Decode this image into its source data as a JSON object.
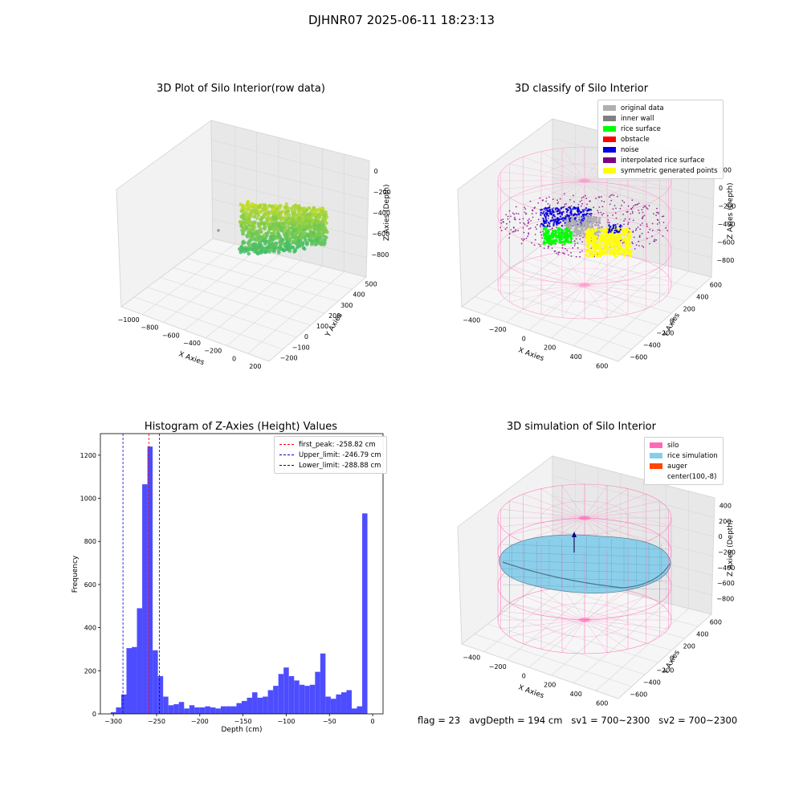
{
  "suptitle": "DJHNR07 2025-06-11 18:23:13",
  "footer": {
    "flag": "flag = 23",
    "avg_depth": "avgDepth = 194 cm",
    "sv1": "sv1 = 700~2300",
    "sv2": "sv2 = 700~2300"
  },
  "plot1": {
    "title": "3D Plot of Silo Interior(row data)",
    "xlabel": "X Axies",
    "ylabel": "Y Axies",
    "zlabel": "Z Axies (Depth)",
    "xticks": [
      "−1000",
      "−800",
      "−600",
      "−400",
      "−200",
      "0",
      "200"
    ],
    "yticks": [
      "−200",
      "−100",
      "0",
      "100",
      "200",
      "300",
      "400",
      "500"
    ],
    "zticks": [
      "−800",
      "−600",
      "−400",
      "−200",
      "0"
    ],
    "colors": {
      "low": "#3fbd6a",
      "high": "#e3e31a"
    }
  },
  "plot2": {
    "title": "3D classify of Silo Interior",
    "xlabel": "X Axies",
    "ylabel": "Y Axies",
    "zlabel": "Z Axies (Depth)",
    "xticks": [
      "−400",
      "−200",
      "0",
      "200",
      "400",
      "600"
    ],
    "yticks": [
      "−600",
      "−400",
      "−200",
      "0",
      "200",
      "400",
      "600"
    ],
    "zticks": [
      "−800",
      "−600",
      "−400",
      "−200",
      "0",
      "200"
    ],
    "legend": [
      {
        "label": "original data",
        "color": "#b0b0b0"
      },
      {
        "label": "inner wall",
        "color": "#808080"
      },
      {
        "label": "rice surface",
        "color": "#00ff00"
      },
      {
        "label": "obstacle",
        "color": "#ff0000"
      },
      {
        "label": "noise",
        "color": "#0000dd"
      },
      {
        "label": "interpolated rice surface",
        "color": "#800080"
      },
      {
        "label": "symmetric generated points",
        "color": "#ffff00"
      }
    ]
  },
  "plot4": {
    "title": "3D simulation of Silo Interior",
    "xlabel": "X Axies",
    "ylabel": "Y Axies",
    "zlabel": "Z Axies (Depth)",
    "xticks": [
      "−400",
      "−200",
      "0",
      "200",
      "400",
      "600"
    ],
    "yticks": [
      "−600",
      "−400",
      "−200",
      "0",
      "200",
      "400",
      "600"
    ],
    "zticks": [
      "−800",
      "−600",
      "−400",
      "−200",
      "0",
      "200",
      "400"
    ],
    "legend": [
      {
        "label": "silo",
        "color": "#ff69b4"
      },
      {
        "label": "rice simulation",
        "color": "#87ceeb"
      },
      {
        "label": "auger",
        "color": "#ff4500"
      },
      {
        "label": "center(100,-8)",
        "color": ""
      }
    ]
  },
  "chart_data": [
    {
      "type": "bar",
      "title": "Histogram of Z-Axies (Height) Values",
      "xlabel": "Depth (cm)",
      "ylabel": "Frequency",
      "xlim": [
        -315,
        12
      ],
      "ylim": [
        0,
        1300
      ],
      "xticks": [
        "−300",
        "−250",
        "−200",
        "−150",
        "−100",
        "−50",
        "0"
      ],
      "xtick_values": [
        -300,
        -250,
        -200,
        -150,
        -100,
        -50,
        0
      ],
      "yticks": [
        "0",
        "200",
        "400",
        "600",
        "800",
        "1000",
        "1200"
      ],
      "ytick_values": [
        0,
        200,
        400,
        600,
        800,
        1000,
        1200
      ],
      "bar_color": "#4d4dff",
      "bin_start": -303,
      "bin_width": 6.06,
      "values": [
        8,
        30,
        90,
        305,
        310,
        490,
        1065,
        1240,
        295,
        175,
        80,
        40,
        45,
        55,
        25,
        40,
        30,
        30,
        35,
        30,
        25,
        35,
        35,
        35,
        50,
        60,
        75,
        100,
        75,
        80,
        110,
        130,
        185,
        215,
        175,
        155,
        135,
        130,
        135,
        195,
        280,
        80,
        70,
        90,
        100,
        110,
        25,
        35,
        930
      ],
      "vlines": [
        {
          "label": "first_peak: -258.82 cm",
          "x": -258.82,
          "color": "#ff0000"
        },
        {
          "label": "Upper_limit: -246.79 cm",
          "x": -246.79,
          "color": "#0000cc"
        },
        {
          "label": "Lower_limit: -288.88 cm",
          "x": -288.88,
          "color": "#0000cc"
        }
      ],
      "legend_position": "top-right"
    }
  ]
}
